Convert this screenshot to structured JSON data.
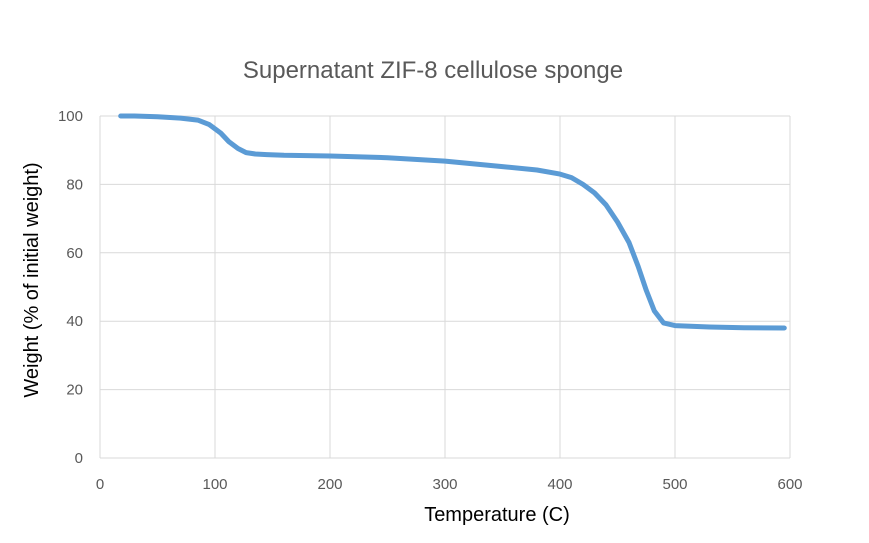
{
  "chart_data": {
    "type": "line",
    "title": "Supernatant ZIF-8 cellulose sponge",
    "xlabel": "Temperature (C)",
    "ylabel": "Weight (% of initial weight)",
    "xlim": [
      0,
      600
    ],
    "ylim": [
      0,
      100
    ],
    "xticks": [
      0,
      100,
      200,
      300,
      400,
      500,
      600
    ],
    "yticks": [
      0,
      20,
      40,
      60,
      80,
      100
    ],
    "grid": true,
    "legend": "none",
    "series": [
      {
        "color": "#5b9bd5",
        "x": [
          18,
          30,
          50,
          70,
          85,
          95,
          105,
          112,
          120,
          127,
          135,
          145,
          160,
          200,
          250,
          300,
          350,
          380,
          400,
          410,
          420,
          430,
          440,
          450,
          460,
          468,
          475,
          482,
          490,
          500,
          530,
          560,
          595
        ],
        "y": [
          100,
          100,
          99.8,
          99.4,
          98.8,
          97.5,
          95,
          92.5,
          90.5,
          89.3,
          88.9,
          88.7,
          88.5,
          88.3,
          87.8,
          86.8,
          85.2,
          84.2,
          83,
          82,
          80,
          77.5,
          74,
          69,
          63,
          56,
          49,
          43,
          39.5,
          38.7,
          38.3,
          38.1,
          38
        ]
      }
    ]
  }
}
